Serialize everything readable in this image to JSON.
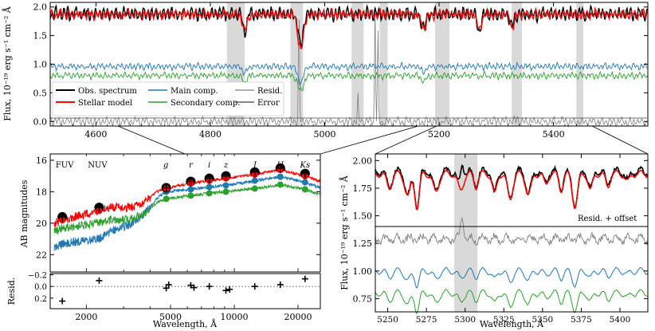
{
  "chart_data": [
    {
      "id": "top",
      "type": "line",
      "title": "",
      "xlabel": "",
      "ylabel": "Flux, 10⁻¹⁹ erg s⁻¹ cm⁻² Å",
      "xlim": [
        4520,
        5565
      ],
      "ylim": [
        -0.08,
        2.08
      ],
      "xticks": [
        4600,
        4800,
        5000,
        5200,
        5400
      ],
      "xtick_labels": [
        "4600",
        "4800",
        "5000",
        "5200",
        "5400"
      ],
      "yticks": [
        0.0,
        0.5,
        1.0,
        1.5,
        2.0
      ],
      "ytick_labels": [
        "0.0",
        "0.5",
        "1.0",
        "1.5",
        "2.0"
      ],
      "masked_regions": [
        [
          4829,
          4860
        ],
        [
          4940,
          4962
        ],
        [
          5047,
          5068
        ],
        [
          5096,
          5110
        ],
        [
          5193,
          5218
        ],
        [
          5327,
          5345
        ],
        [
          5440,
          5452
        ]
      ],
      "series": [
        {
          "name": "Obs. spectrum",
          "color": "#000000",
          "level": 1.88,
          "amp": 0.07,
          "dips": [
            [
              4958,
              0.55,
              6
            ],
            [
              4860,
              0.3,
              5
            ],
            [
              5173,
              0.25,
              6
            ],
            [
              5270,
              0.28,
              5
            ],
            [
              5328,
              0.22,
              5
            ]
          ]
        },
        {
          "name": "Stellar model",
          "color": "#ff0000",
          "level": 1.87,
          "amp": 0.05,
          "dips": [
            [
              4958,
              0.6,
              7
            ],
            [
              4860,
              0.3,
              5
            ],
            [
              5173,
              0.25,
              6
            ],
            [
              5270,
              0.28,
              5
            ],
            [
              5328,
              0.22,
              5
            ]
          ]
        },
        {
          "name": "Main comp.",
          "color": "#1f77b4",
          "level": 0.96,
          "amp": 0.035,
          "dips": [
            [
              4958,
              0.28,
              7
            ],
            [
              4860,
              0.12,
              5
            ],
            [
              5173,
              0.1,
              6
            ]
          ]
        },
        {
          "name": "Secondary comp.",
          "color": "#2ca02c",
          "level": 0.8,
          "amp": 0.035,
          "dips": [
            [
              4958,
              0.28,
              7
            ],
            [
              4860,
              0.12,
              5
            ],
            [
              5173,
              0.1,
              6
            ]
          ]
        },
        {
          "name": "Resid.",
          "color": "#7f7f7f",
          "level": 0.0,
          "amp": 0.045,
          "spikes": [
            [
              4955,
              2.1
            ],
            [
              5058,
              0.45
            ],
            [
              5088,
              2.0
            ],
            [
              5093,
              1.6
            ],
            [
              5337,
              0.1
            ]
          ]
        },
        {
          "name": "Error",
          "color": "#444444",
          "level": 0.06,
          "amp": 0.0
        }
      ],
      "legend": "lower-left"
    },
    {
      "id": "sed",
      "type": "scatter",
      "xlabel": "",
      "ylabel": "AB magnitudes",
      "xscale": "log",
      "xlim": [
        1350,
        25500
      ],
      "ylim": [
        23.1,
        15.6
      ],
      "xticks": [
        2000,
        5000,
        10000,
        20000
      ],
      "xtick_labels": [
        "2000",
        "5000",
        "10000",
        "20000"
      ],
      "yticks": [
        16,
        18,
        20,
        22
      ],
      "ytick_labels": [
        "16",
        "18",
        "20",
        "22"
      ],
      "bands": [
        "FUV",
        "NUV",
        "g",
        "r",
        "i",
        "z",
        "J",
        "H",
        "Ks"
      ],
      "band_wavelengths": [
        1540,
        2300,
        4770,
        6230,
        7620,
        9130,
        12500,
        16500,
        21600
      ],
      "observed": [
        19.6,
        19.0,
        17.75,
        17.35,
        17.15,
        17.0,
        16.75,
        16.5,
        16.85
      ],
      "model": [
        19.8,
        19.2,
        17.8,
        17.45,
        17.3,
        17.15,
        16.9,
        16.6,
        17.0
      ],
      "main_comp": [
        21.3,
        21.0,
        18.0,
        17.85,
        17.7,
        17.6,
        17.3,
        17.05,
        17.4
      ],
      "secondary_comp": [
        20.3,
        20.0,
        18.45,
        18.25,
        18.1,
        18.0,
        17.8,
        17.55,
        17.85
      ],
      "colors": {
        "model": "#ff0000",
        "main": "#1f77b4",
        "secondary": "#2ca02c",
        "obs": "#000000"
      }
    },
    {
      "id": "sed_resid",
      "type": "scatter",
      "xlabel": "Wavelength, Å",
      "ylabel": "Resid.",
      "xscale": "log",
      "xlim": [
        1350,
        25500
      ],
      "ylim": [
        0.38,
        -0.22
      ],
      "yticks": [
        -0.2,
        0.0,
        0.2
      ],
      "ytick_labels": [
        "−0.2",
        "0.0",
        "0.2"
      ],
      "x": [
        1540,
        2300,
        4770,
        4900,
        6230,
        6450,
        7620,
        9130,
        9500,
        12500,
        16500,
        21600
      ],
      "values": [
        0.25,
        -0.1,
        0.03,
        -0.03,
        -0.02,
        0.02,
        0.0,
        0.07,
        0.05,
        0.0,
        -0.03,
        -0.13
      ]
    },
    {
      "id": "zoom",
      "type": "line",
      "xlabel": "Wavelength, Å",
      "ylabel": "Flux, 10⁻¹⁹ erg s⁻¹ cm⁻² Å",
      "xlim": [
        5242,
        5418
      ],
      "ylim": [
        0.63,
        2.06
      ],
      "xticks": [
        5250,
        5275,
        5300,
        5325,
        5350,
        5375,
        5400
      ],
      "xtick_labels": [
        "5250",
        "5275",
        "5300",
        "5325",
        "5350",
        "5375",
        "5400"
      ],
      "yticks": [
        0.75,
        1.0,
        1.25,
        1.5,
        1.75,
        2.0
      ],
      "ytick_labels": [
        "0.75",
        "1.00",
        "1.25",
        "1.50",
        "1.75",
        "2.00"
      ],
      "resid_offset": 1.29,
      "masked_regions": [
        [
          5293,
          5308
        ]
      ],
      "annotation": "Resid. + offset",
      "series": [
        {
          "name": "Obs. spectrum",
          "color": "#000000",
          "level": 1.9
        },
        {
          "name": "Stellar model",
          "color": "#ff0000",
          "level": 1.88
        },
        {
          "name": "Main comp.",
          "color": "#1f77b4",
          "level": 1.0
        },
        {
          "name": "Secondary comp.",
          "color": "#2ca02c",
          "level": 0.8
        },
        {
          "name": "Resid.",
          "color": "#7f7f7f",
          "level": 1.29
        }
      ]
    }
  ]
}
